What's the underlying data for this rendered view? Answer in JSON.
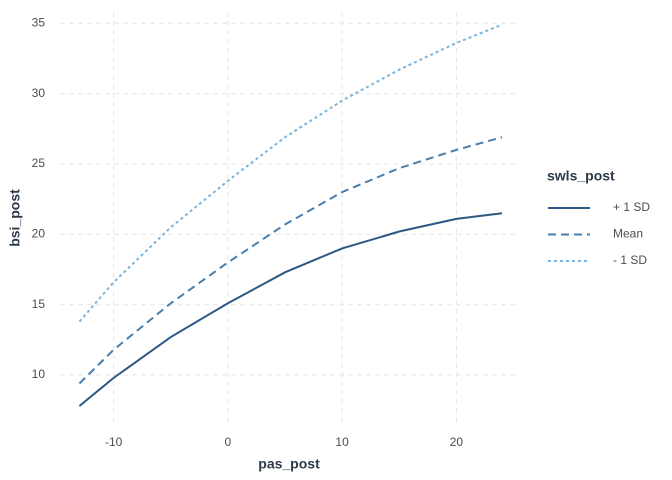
{
  "chart_data": {
    "type": "line",
    "x_label": "pas_post",
    "y_label": "bsi_post",
    "legend_title": "swls_post",
    "x": [
      -13,
      -10,
      -5,
      0,
      5,
      10,
      15,
      20,
      24
    ],
    "series": [
      {
        "name": "+ 1 SD",
        "color": "#2c5885",
        "dash": "solid",
        "values": [
          7.8,
          9.8,
          12.7,
          15.1,
          17.3,
          19.0,
          20.2,
          21.1,
          21.5
        ]
      },
      {
        "name": "Mean",
        "color": "#4a7eab",
        "dash": "dashed",
        "values": [
          9.4,
          11.8,
          15.1,
          18.0,
          20.7,
          23.0,
          24.7,
          26.0,
          26.9
        ]
      },
      {
        "name": "- 1 SD",
        "color": "#7ab4dc",
        "dash": "dotted",
        "values": [
          13.8,
          16.6,
          20.5,
          23.8,
          26.9,
          29.5,
          31.7,
          33.6,
          34.9
        ]
      }
    ],
    "xlim": [
      -14.7,
      25.4
    ],
    "xticks": [
      -10,
      0,
      10,
      20
    ],
    "ylim": [
      6.45,
      35.8
    ],
    "yticks": [
      10,
      15,
      20,
      25,
      30,
      35
    ],
    "grid": true,
    "legend": "right"
  }
}
